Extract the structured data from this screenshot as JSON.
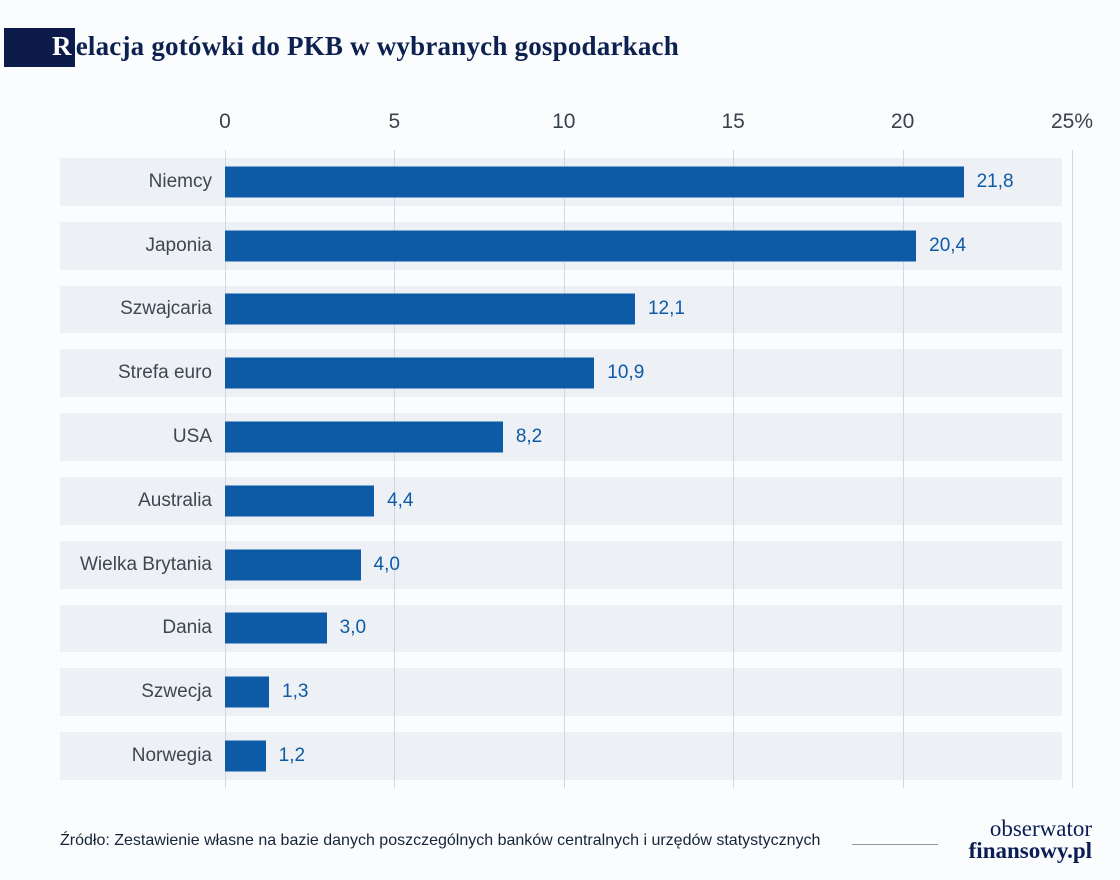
{
  "header": {
    "title_initial": "R",
    "title_rest": "elacja gotówki do PKB w wybranych gospodarkach"
  },
  "chart_data": {
    "type": "bar",
    "orientation": "horizontal",
    "title": "Relacja gotówki do PKB w wybranych gospodarkach",
    "categories": [
      "Niemcy",
      "Japonia",
      "Szwajcaria",
      "Strefa euro",
      "USA",
      "Australia",
      "Wielka Brytania",
      "Dania",
      "Szwecja",
      "Norwegia"
    ],
    "values": [
      21.8,
      20.4,
      12.1,
      10.9,
      8.2,
      4.4,
      4.0,
      3.0,
      1.3,
      1.2
    ],
    "value_labels": [
      "21,8",
      "20,4",
      "12,1",
      "10,9",
      "8,2",
      "4,4",
      "4,0",
      "3,0",
      "1,3",
      "1,2"
    ],
    "unit": "%",
    "xlim": [
      0,
      25
    ],
    "x_ticks": [
      {
        "value": 0,
        "label": "0"
      },
      {
        "value": 5,
        "label": "5"
      },
      {
        "value": 10,
        "label": "10"
      },
      {
        "value": 15,
        "label": "15"
      },
      {
        "value": 20,
        "label": "20"
      },
      {
        "value": 25,
        "label": "25%"
      }
    ],
    "grid": true,
    "legend": false,
    "colors": {
      "bar": "#0d5ba7",
      "value_label": "#0d5ba7",
      "accent_navy": "#0d1b4a",
      "row_band": "#edf0f4"
    }
  },
  "footer": {
    "source": "Źródło: Zestawienie własne na bazie danych poszczególnych banków centralnych i urzędów statystycznych",
    "logo_line1": "obserwator",
    "logo_line2": "finansowy.pl"
  }
}
